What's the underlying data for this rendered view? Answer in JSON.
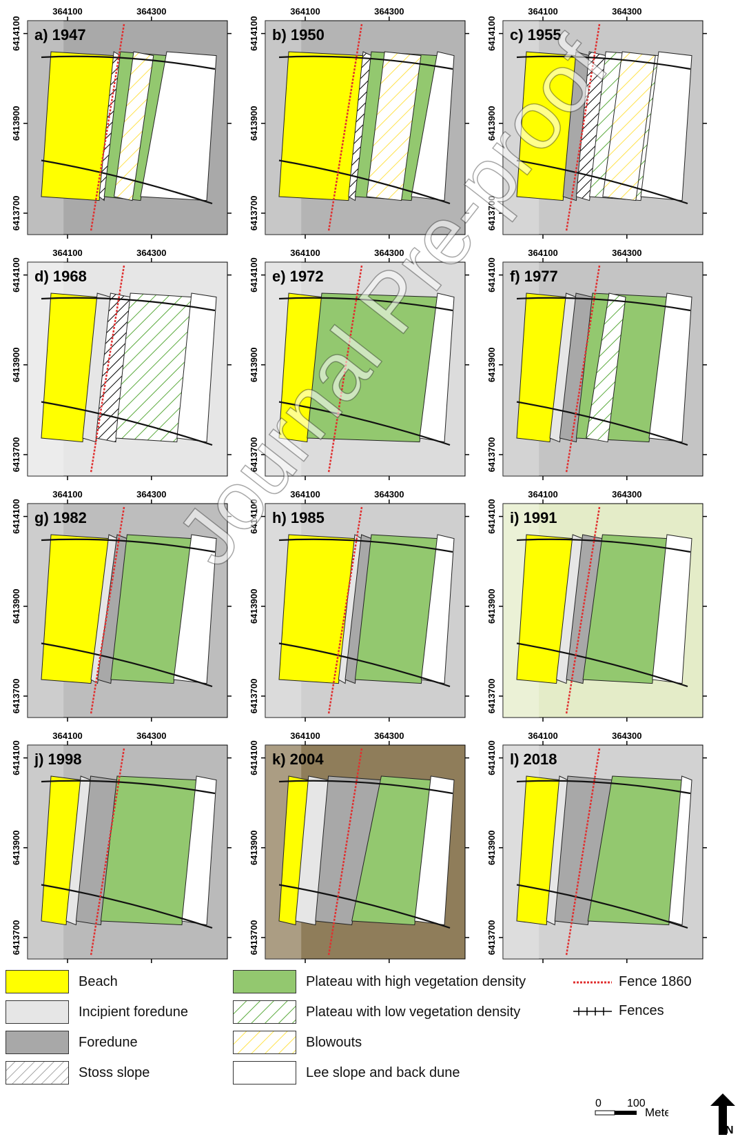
{
  "panels": [
    {
      "label": "a) 1947",
      "x_ticks": [
        "364100",
        "364300"
      ],
      "y_ticks": [
        "6414100",
        "6413900",
        "6413700"
      ],
      "type": "A",
      "tone": "#a9a9a9"
    },
    {
      "label": "b) 1950",
      "x_ticks": [
        "364100",
        "364300"
      ],
      "y_ticks": [
        "6414100",
        "6413900",
        "6413700"
      ],
      "type": "B",
      "tone": "#b4b4b4"
    },
    {
      "label": "c) 1955",
      "x_ticks": [
        "364100",
        "364300"
      ],
      "y_ticks": [
        "6414100",
        "6413900",
        "6413700"
      ],
      "type": "C",
      "tone": "#c8c8c8"
    },
    {
      "label": "d) 1968",
      "x_ticks": [
        "364100",
        "364300"
      ],
      "y_ticks": [
        "6414100",
        "6413900",
        "6413700"
      ],
      "type": "D",
      "tone": "#e6e6e6"
    },
    {
      "label": "e) 1972",
      "x_ticks": [
        "364100",
        "364300"
      ],
      "y_ticks": [
        "6414100",
        "6413900",
        "6413700"
      ],
      "type": "E",
      "tone": "#dcdcdc"
    },
    {
      "label": "f) 1977",
      "x_ticks": [
        "364100",
        "364300"
      ],
      "y_ticks": [
        "6414100",
        "6413900",
        "6413700"
      ],
      "type": "F",
      "tone": "#c4c4c4"
    },
    {
      "label": "g) 1982",
      "x_ticks": [
        "364100",
        "364300"
      ],
      "y_ticks": [
        "6414100",
        "6413900",
        "6413700"
      ],
      "type": "G",
      "tone": "#bdbdbd"
    },
    {
      "label": "h) 1985",
      "x_ticks": [
        "364100",
        "364300"
      ],
      "y_ticks": [
        "6414100",
        "6413900",
        "6413700"
      ],
      "type": "H",
      "tone": "#cfcfcf"
    },
    {
      "label": "i) 1991",
      "x_ticks": [
        "364100",
        "364300"
      ],
      "y_ticks": [
        "6414100",
        "6413900",
        "6413700"
      ],
      "type": "I",
      "tone": "#e4ecc8"
    },
    {
      "label": "j) 1998",
      "x_ticks": [
        "364100",
        "364300"
      ],
      "y_ticks": [
        "6414100",
        "6413900",
        "6413700"
      ],
      "type": "J",
      "tone": "#bababa"
    },
    {
      "label": "k) 2004",
      "x_ticks": [
        "364100",
        "364300"
      ],
      "y_ticks": [
        "6414100",
        "6413900",
        "6413700"
      ],
      "type": "K",
      "tone": "#8f7d5a"
    },
    {
      "label": "l) 2018",
      "x_ticks": [
        "364100",
        "364300"
      ],
      "y_ticks": [
        "6414100",
        "6413900",
        "6413700"
      ],
      "type": "L",
      "tone": "#d2d2d2"
    }
  ],
  "legend": {
    "beach": "Beach",
    "incipient": "Incipient foredune",
    "foredune": "Foredune",
    "stoss": "Stoss slope",
    "plateau_high": "Plateau with high vegetation density",
    "plateau_low": "Plateau with low vegetation density",
    "blowouts": "Blowouts",
    "lee": "Lee slope and back dune",
    "fence1860": "Fence 1860",
    "fences": "Fences"
  },
  "scale": {
    "zero": "0",
    "hundred": "100",
    "unit": "Meters"
  },
  "north": "N",
  "watermark": "Journal Pre-proof",
  "colors": {
    "beach": "#ffff00",
    "incipient": "#e6e6e6",
    "foredune": "#a8a8a8",
    "plateau_high": "#93c86f",
    "plateau_low_stripe": "#5aaa3c",
    "blowout_stripe": "#ffe84d",
    "lee": "#ffffff",
    "fence1860": "#e03030"
  }
}
